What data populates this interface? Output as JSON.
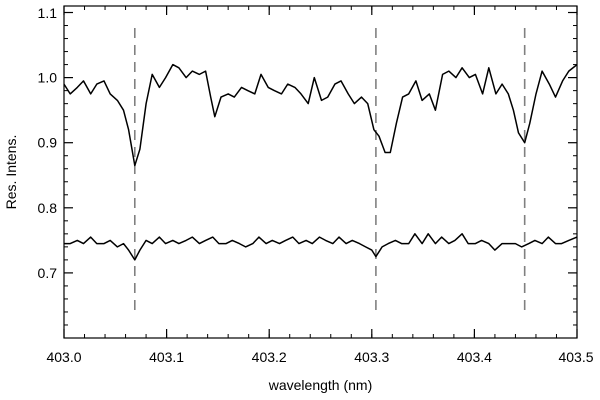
{
  "chart_data": {
    "type": "line",
    "title": "",
    "xlabel": "wavelength (nm)",
    "ylabel": "Res. Intens.",
    "xlim": [
      403.0,
      403.5
    ],
    "ylim": [
      0.6,
      1.11
    ],
    "x_ticks": [
      403.0,
      403.1,
      403.2,
      403.3,
      403.4,
      403.5
    ],
    "x_tick_labels": [
      "403.0",
      "403.1",
      "403.2",
      "403.3",
      "403.4",
      "403.5"
    ],
    "y_ticks": [
      0.7,
      0.8,
      0.9,
      1.0,
      1.1
    ],
    "y_tick_labels": [
      "0.7",
      "0.8",
      "0.9",
      "1.0",
      "1.1"
    ],
    "grid": false,
    "reference_lines": {
      "orientation": "vertical",
      "style": "dashed",
      "color": "#808080",
      "x": [
        403.069,
        403.304,
        403.449
      ]
    },
    "series": [
      {
        "color": "#000000",
        "x": [
          403.0,
          403.006,
          403.013,
          403.019,
          403.026,
          403.032,
          403.039,
          403.045,
          403.052,
          403.058,
          403.063,
          403.069,
          403.074,
          403.08,
          403.086,
          403.093,
          403.099,
          403.106,
          403.112,
          403.119,
          403.125,
          403.132,
          403.138,
          403.143,
          403.147,
          403.153,
          403.16,
          403.166,
          403.173,
          403.179,
          403.186,
          403.192,
          403.199,
          403.205,
          403.212,
          403.218,
          403.225,
          403.231,
          403.238,
          403.244,
          403.251,
          403.257,
          403.264,
          403.27,
          403.277,
          403.283,
          403.29,
          403.296,
          403.302,
          403.307,
          403.313,
          403.318,
          403.324,
          403.33,
          403.336,
          403.343,
          403.349,
          403.356,
          403.362,
          403.369,
          403.375,
          403.382,
          403.388,
          403.395,
          403.401,
          403.408,
          403.414,
          403.421,
          403.427,
          403.433,
          403.438,
          403.443,
          403.449,
          403.454,
          403.46,
          403.466,
          403.473,
          403.479,
          403.486,
          403.492,
          403.5
        ],
        "y": [
          0.99,
          0.975,
          0.985,
          0.995,
          0.975,
          0.99,
          0.995,
          0.975,
          0.965,
          0.95,
          0.92,
          0.865,
          0.89,
          0.96,
          1.005,
          0.985,
          1.0,
          1.02,
          1.015,
          1.0,
          1.01,
          1.005,
          1.01,
          0.97,
          0.94,
          0.97,
          0.975,
          0.97,
          0.985,
          0.98,
          0.975,
          1.005,
          0.985,
          0.98,
          0.975,
          0.99,
          0.985,
          0.975,
          0.96,
          1.0,
          0.965,
          0.97,
          0.99,
          0.995,
          0.975,
          0.96,
          0.97,
          0.96,
          0.92,
          0.91,
          0.885,
          0.885,
          0.93,
          0.97,
          0.975,
          0.995,
          0.965,
          0.975,
          0.95,
          1.005,
          1.01,
          1.0,
          1.015,
          1.0,
          1.005,
          0.975,
          1.015,
          0.975,
          0.99,
          0.975,
          0.95,
          0.915,
          0.9,
          0.93,
          0.975,
          1.01,
          0.99,
          0.97,
          0.995,
          1.01,
          1.02
        ]
      },
      {
        "color": "#000000",
        "x": [
          403.0,
          403.006,
          403.013,
          403.019,
          403.026,
          403.032,
          403.039,
          403.045,
          403.052,
          403.058,
          403.063,
          403.069,
          403.074,
          403.08,
          403.086,
          403.093,
          403.099,
          403.106,
          403.112,
          403.119,
          403.125,
          403.132,
          403.138,
          403.145,
          403.151,
          403.158,
          403.164,
          403.171,
          403.177,
          403.184,
          403.19,
          403.197,
          403.203,
          403.21,
          403.216,
          403.223,
          403.229,
          403.236,
          403.242,
          403.249,
          403.255,
          403.262,
          403.268,
          403.275,
          403.281,
          403.288,
          403.294,
          403.3,
          403.304,
          403.31,
          403.316,
          403.323,
          403.329,
          403.336,
          403.342,
          403.349,
          403.355,
          403.362,
          403.368,
          403.375,
          403.381,
          403.388,
          403.394,
          403.401,
          403.407,
          403.414,
          403.42,
          403.427,
          403.433,
          403.44,
          403.446,
          403.453,
          403.459,
          403.466,
          403.472,
          403.479,
          403.485,
          403.492,
          403.5
        ],
        "y": [
          0.745,
          0.745,
          0.75,
          0.745,
          0.755,
          0.745,
          0.745,
          0.75,
          0.74,
          0.745,
          0.735,
          0.72,
          0.735,
          0.75,
          0.745,
          0.755,
          0.745,
          0.75,
          0.745,
          0.75,
          0.755,
          0.745,
          0.75,
          0.755,
          0.745,
          0.745,
          0.75,
          0.745,
          0.74,
          0.745,
          0.755,
          0.745,
          0.75,
          0.745,
          0.75,
          0.755,
          0.745,
          0.75,
          0.745,
          0.755,
          0.75,
          0.745,
          0.755,
          0.745,
          0.75,
          0.745,
          0.74,
          0.735,
          0.725,
          0.74,
          0.745,
          0.75,
          0.745,
          0.745,
          0.76,
          0.745,
          0.76,
          0.745,
          0.755,
          0.745,
          0.75,
          0.76,
          0.745,
          0.745,
          0.75,
          0.745,
          0.735,
          0.745,
          0.745,
          0.745,
          0.74,
          0.745,
          0.75,
          0.745,
          0.755,
          0.745,
          0.745,
          0.75,
          0.755
        ]
      }
    ]
  }
}
